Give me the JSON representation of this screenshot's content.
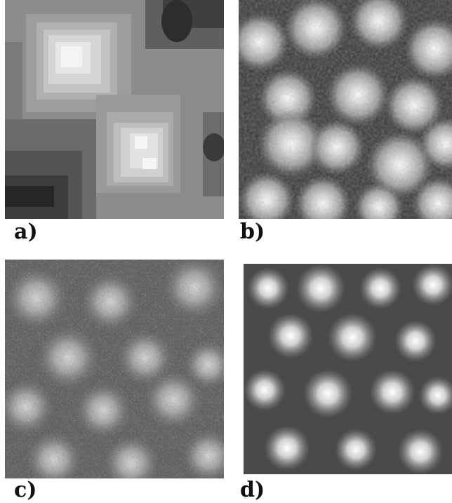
{
  "figure": {
    "panels": [
      {
        "id": "a",
        "label": "a)",
        "style": "blocky-terrain",
        "base": "#8a8a8a",
        "light": "#f2f2f2",
        "dark": "#2a2a2a"
      },
      {
        "id": "b",
        "label": "b)",
        "style": "cellular-bright-blobs",
        "base": "#777777",
        "light": "#ffffff",
        "dark": "#151515"
      },
      {
        "id": "c",
        "label": "c)",
        "style": "noisy-blobs",
        "base": "#6e6e6e",
        "light": "#dddddd",
        "dark": "#1e1e1e"
      },
      {
        "id": "d",
        "label": "d)",
        "style": "smooth-diamond-blobs",
        "base": "#8a8a8a",
        "light": "#ffffff",
        "dark": "#3a3a3a"
      }
    ]
  }
}
